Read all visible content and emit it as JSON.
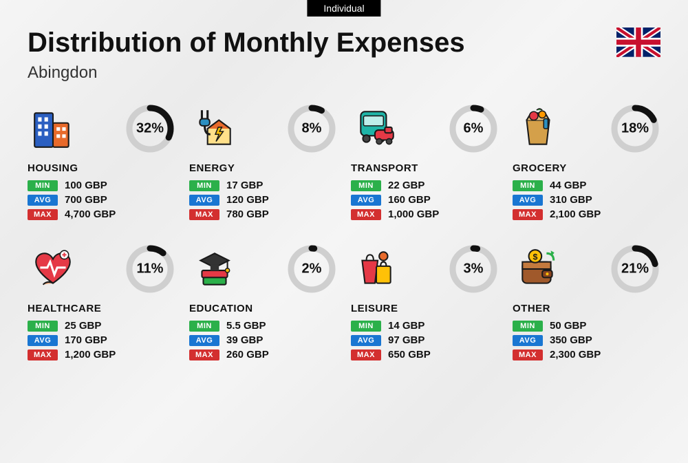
{
  "tag": "Individual",
  "title": "Distribution of Monthly Expenses",
  "subtitle": "Abingdon",
  "flag": "uk",
  "currency": "GBP",
  "stat_labels": {
    "min": "MIN",
    "avg": "AVG",
    "max": "MAX"
  },
  "stat_colors": {
    "min": "#2bb04a",
    "avg": "#1976d2",
    "max": "#d32f2f"
  },
  "ring": {
    "track_color": "#cfcfcf",
    "progress_color": "#111111",
    "stroke_width": 9,
    "radius": 30
  },
  "title_fontsize": 40,
  "title_color": "#111111",
  "subtitle_fontsize": 24,
  "background": "#f2f2f2",
  "categories": [
    {
      "key": "housing",
      "name": "HOUSING",
      "icon": "buildings",
      "pct": 32,
      "pct_label": "32%",
      "min": "100 GBP",
      "avg": "700 GBP",
      "max": "4,700 GBP"
    },
    {
      "key": "energy",
      "name": "ENERGY",
      "icon": "energy",
      "pct": 8,
      "pct_label": "8%",
      "min": "17 GBP",
      "avg": "120 GBP",
      "max": "780 GBP"
    },
    {
      "key": "transport",
      "name": "TRANSPORT",
      "icon": "transport",
      "pct": 6,
      "pct_label": "6%",
      "min": "22 GBP",
      "avg": "160 GBP",
      "max": "1,000 GBP"
    },
    {
      "key": "grocery",
      "name": "GROCERY",
      "icon": "grocery",
      "pct": 18,
      "pct_label": "18%",
      "min": "44 GBP",
      "avg": "310 GBP",
      "max": "2,100 GBP"
    },
    {
      "key": "healthcare",
      "name": "HEALTHCARE",
      "icon": "health",
      "pct": 11,
      "pct_label": "11%",
      "min": "25 GBP",
      "avg": "170 GBP",
      "max": "1,200 GBP"
    },
    {
      "key": "education",
      "name": "EDUCATION",
      "icon": "education",
      "pct": 2,
      "pct_label": "2%",
      "min": "5.5 GBP",
      "avg": "39 GBP",
      "max": "260 GBP"
    },
    {
      "key": "leisure",
      "name": "LEISURE",
      "icon": "leisure",
      "pct": 3,
      "pct_label": "3%",
      "min": "14 GBP",
      "avg": "97 GBP",
      "max": "650 GBP"
    },
    {
      "key": "other",
      "name": "OTHER",
      "icon": "wallet",
      "pct": 21,
      "pct_label": "21%",
      "min": "50 GBP",
      "avg": "350 GBP",
      "max": "2,300 GBP"
    }
  ]
}
